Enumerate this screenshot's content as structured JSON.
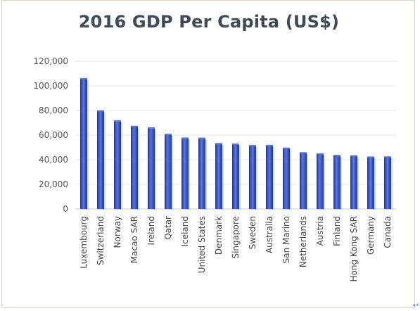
{
  "chart_data": {
    "type": "bar",
    "title": "2016 GDP Per Capita (US$)",
    "categories": [
      "Luxembourg",
      "Switzerland",
      "Norway",
      "Macao SAR",
      "Ireland",
      "Qatar",
      "Iceland",
      "United States",
      "Denmark",
      "Singapore",
      "Sweden",
      "Australia",
      "San Marino",
      "Netherlands",
      "Austria",
      "Finland",
      "Hong Kong SAR",
      "Germany",
      "Canada"
    ],
    "values": [
      105800,
      79600,
      71500,
      67000,
      65800,
      60500,
      57500,
      57400,
      53000,
      52600,
      51400,
      51500,
      49300,
      45600,
      44700,
      43400,
      43100,
      42100,
      42200
    ],
    "yticks": [
      "0",
      "20,000",
      "40,000",
      "60,000",
      "80,000",
      "100,000",
      "120,000"
    ],
    "ylim": [
      0,
      120000
    ],
    "grid": true,
    "bar_color": "#3352c0",
    "bar_dark": "#1e3590",
    "bar_light": "#5b78d8"
  },
  "corner_glyph": "↩"
}
